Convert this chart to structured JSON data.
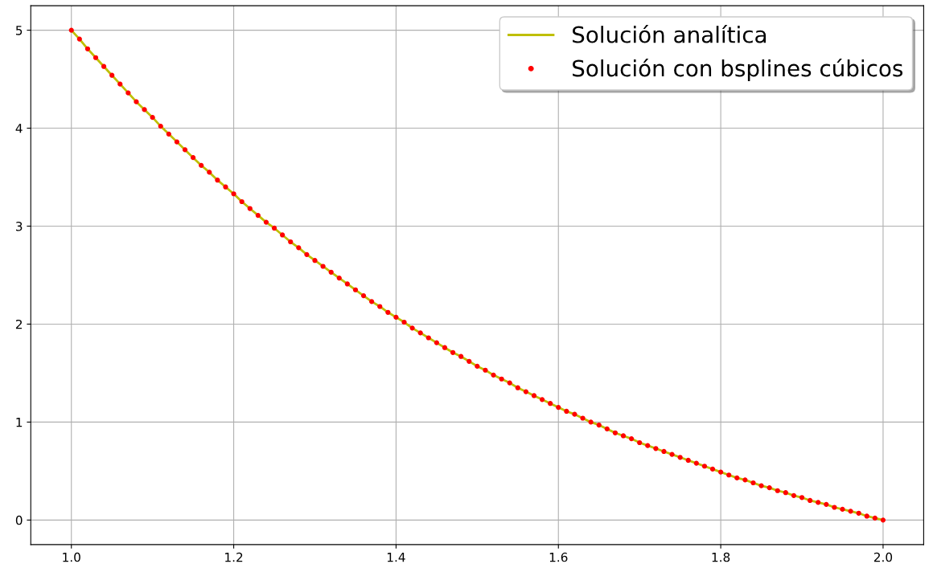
{
  "chart_data": {
    "type": "line",
    "x": [
      1.0,
      1.01,
      1.02,
      1.03,
      1.04,
      1.05,
      1.06,
      1.07,
      1.08,
      1.09,
      1.1,
      1.11,
      1.12,
      1.13,
      1.14,
      1.15,
      1.16,
      1.17,
      1.18,
      1.19,
      1.2,
      1.21,
      1.22,
      1.23,
      1.24,
      1.25,
      1.26,
      1.27,
      1.28,
      1.29,
      1.3,
      1.31,
      1.32,
      1.33,
      1.34,
      1.35,
      1.36,
      1.37,
      1.38,
      1.39,
      1.4,
      1.41,
      1.42,
      1.43,
      1.44,
      1.45,
      1.46,
      1.47,
      1.48,
      1.49,
      1.5,
      1.51,
      1.52,
      1.53,
      1.54,
      1.55,
      1.56,
      1.57,
      1.58,
      1.59,
      1.6,
      1.61,
      1.62,
      1.63,
      1.64,
      1.65,
      1.66,
      1.67,
      1.68,
      1.69,
      1.7,
      1.71,
      1.72,
      1.73,
      1.74,
      1.75,
      1.76,
      1.77,
      1.78,
      1.79,
      1.8,
      1.81,
      1.82,
      1.83,
      1.84,
      1.85,
      1.86,
      1.87,
      1.88,
      1.89,
      1.9,
      1.91,
      1.92,
      1.93,
      1.94,
      1.95,
      1.96,
      1.97,
      1.98,
      1.99,
      2.0
    ],
    "series": [
      {
        "name": "Solución analítica",
        "color": "#bfbf00",
        "marker": "none",
        "line_style": "solid",
        "values": [
          5.0,
          4.91,
          4.81,
          4.72,
          4.63,
          4.54,
          4.45,
          4.36,
          4.27,
          4.19,
          4.11,
          4.02,
          3.94,
          3.86,
          3.78,
          3.7,
          3.62,
          3.55,
          3.47,
          3.4,
          3.33,
          3.25,
          3.18,
          3.11,
          3.04,
          2.98,
          2.91,
          2.84,
          2.78,
          2.71,
          2.65,
          2.59,
          2.53,
          2.47,
          2.41,
          2.35,
          2.29,
          2.23,
          2.18,
          2.12,
          2.07,
          2.02,
          1.96,
          1.91,
          1.86,
          1.81,
          1.76,
          1.71,
          1.67,
          1.62,
          1.57,
          1.53,
          1.48,
          1.44,
          1.4,
          1.35,
          1.31,
          1.27,
          1.23,
          1.19,
          1.15,
          1.11,
          1.08,
          1.04,
          1.0,
          0.97,
          0.93,
          0.89,
          0.86,
          0.83,
          0.79,
          0.76,
          0.73,
          0.7,
          0.67,
          0.64,
          0.61,
          0.58,
          0.55,
          0.52,
          0.49,
          0.46,
          0.43,
          0.41,
          0.38,
          0.35,
          0.33,
          0.3,
          0.28,
          0.25,
          0.23,
          0.2,
          0.18,
          0.16,
          0.13,
          0.11,
          0.09,
          0.07,
          0.04,
          0.02,
          0
        ]
      },
      {
        "name": "Solución con bsplines cúbicos",
        "type": "scatter",
        "color": "#ff0000",
        "marker": "circle",
        "values": [
          5.0,
          4.91,
          4.81,
          4.72,
          4.63,
          4.54,
          4.45,
          4.36,
          4.27,
          4.19,
          4.11,
          4.02,
          3.94,
          3.86,
          3.78,
          3.7,
          3.62,
          3.55,
          3.47,
          3.4,
          3.33,
          3.25,
          3.18,
          3.11,
          3.04,
          2.98,
          2.91,
          2.84,
          2.78,
          2.71,
          2.65,
          2.59,
          2.53,
          2.47,
          2.41,
          2.35,
          2.29,
          2.23,
          2.18,
          2.12,
          2.07,
          2.02,
          1.96,
          1.91,
          1.86,
          1.81,
          1.76,
          1.71,
          1.67,
          1.62,
          1.57,
          1.53,
          1.48,
          1.44,
          1.4,
          1.35,
          1.31,
          1.27,
          1.23,
          1.19,
          1.15,
          1.11,
          1.08,
          1.04,
          1.0,
          0.97,
          0.93,
          0.89,
          0.86,
          0.83,
          0.79,
          0.76,
          0.73,
          0.7,
          0.67,
          0.64,
          0.61,
          0.58,
          0.55,
          0.52,
          0.49,
          0.46,
          0.43,
          0.41,
          0.38,
          0.35,
          0.33,
          0.3,
          0.28,
          0.25,
          0.23,
          0.2,
          0.18,
          0.16,
          0.13,
          0.11,
          0.09,
          0.07,
          0.04,
          0.02,
          0
        ]
      }
    ],
    "xlim": [
      0.95,
      2.05
    ],
    "xticks": [
      {
        "value": 1.0,
        "label": "1.0"
      },
      {
        "value": 1.2,
        "label": "1.2"
      },
      {
        "value": 1.4,
        "label": "1.4"
      },
      {
        "value": 1.6,
        "label": "1.6"
      },
      {
        "value": 1.8,
        "label": "1.8"
      },
      {
        "value": 2.0,
        "label": "2.0"
      }
    ],
    "ylim": [
      -0.25,
      5.25
    ],
    "yticks": [
      0,
      1,
      2,
      3,
      4,
      5
    ],
    "grid": true,
    "legend": "top right"
  }
}
